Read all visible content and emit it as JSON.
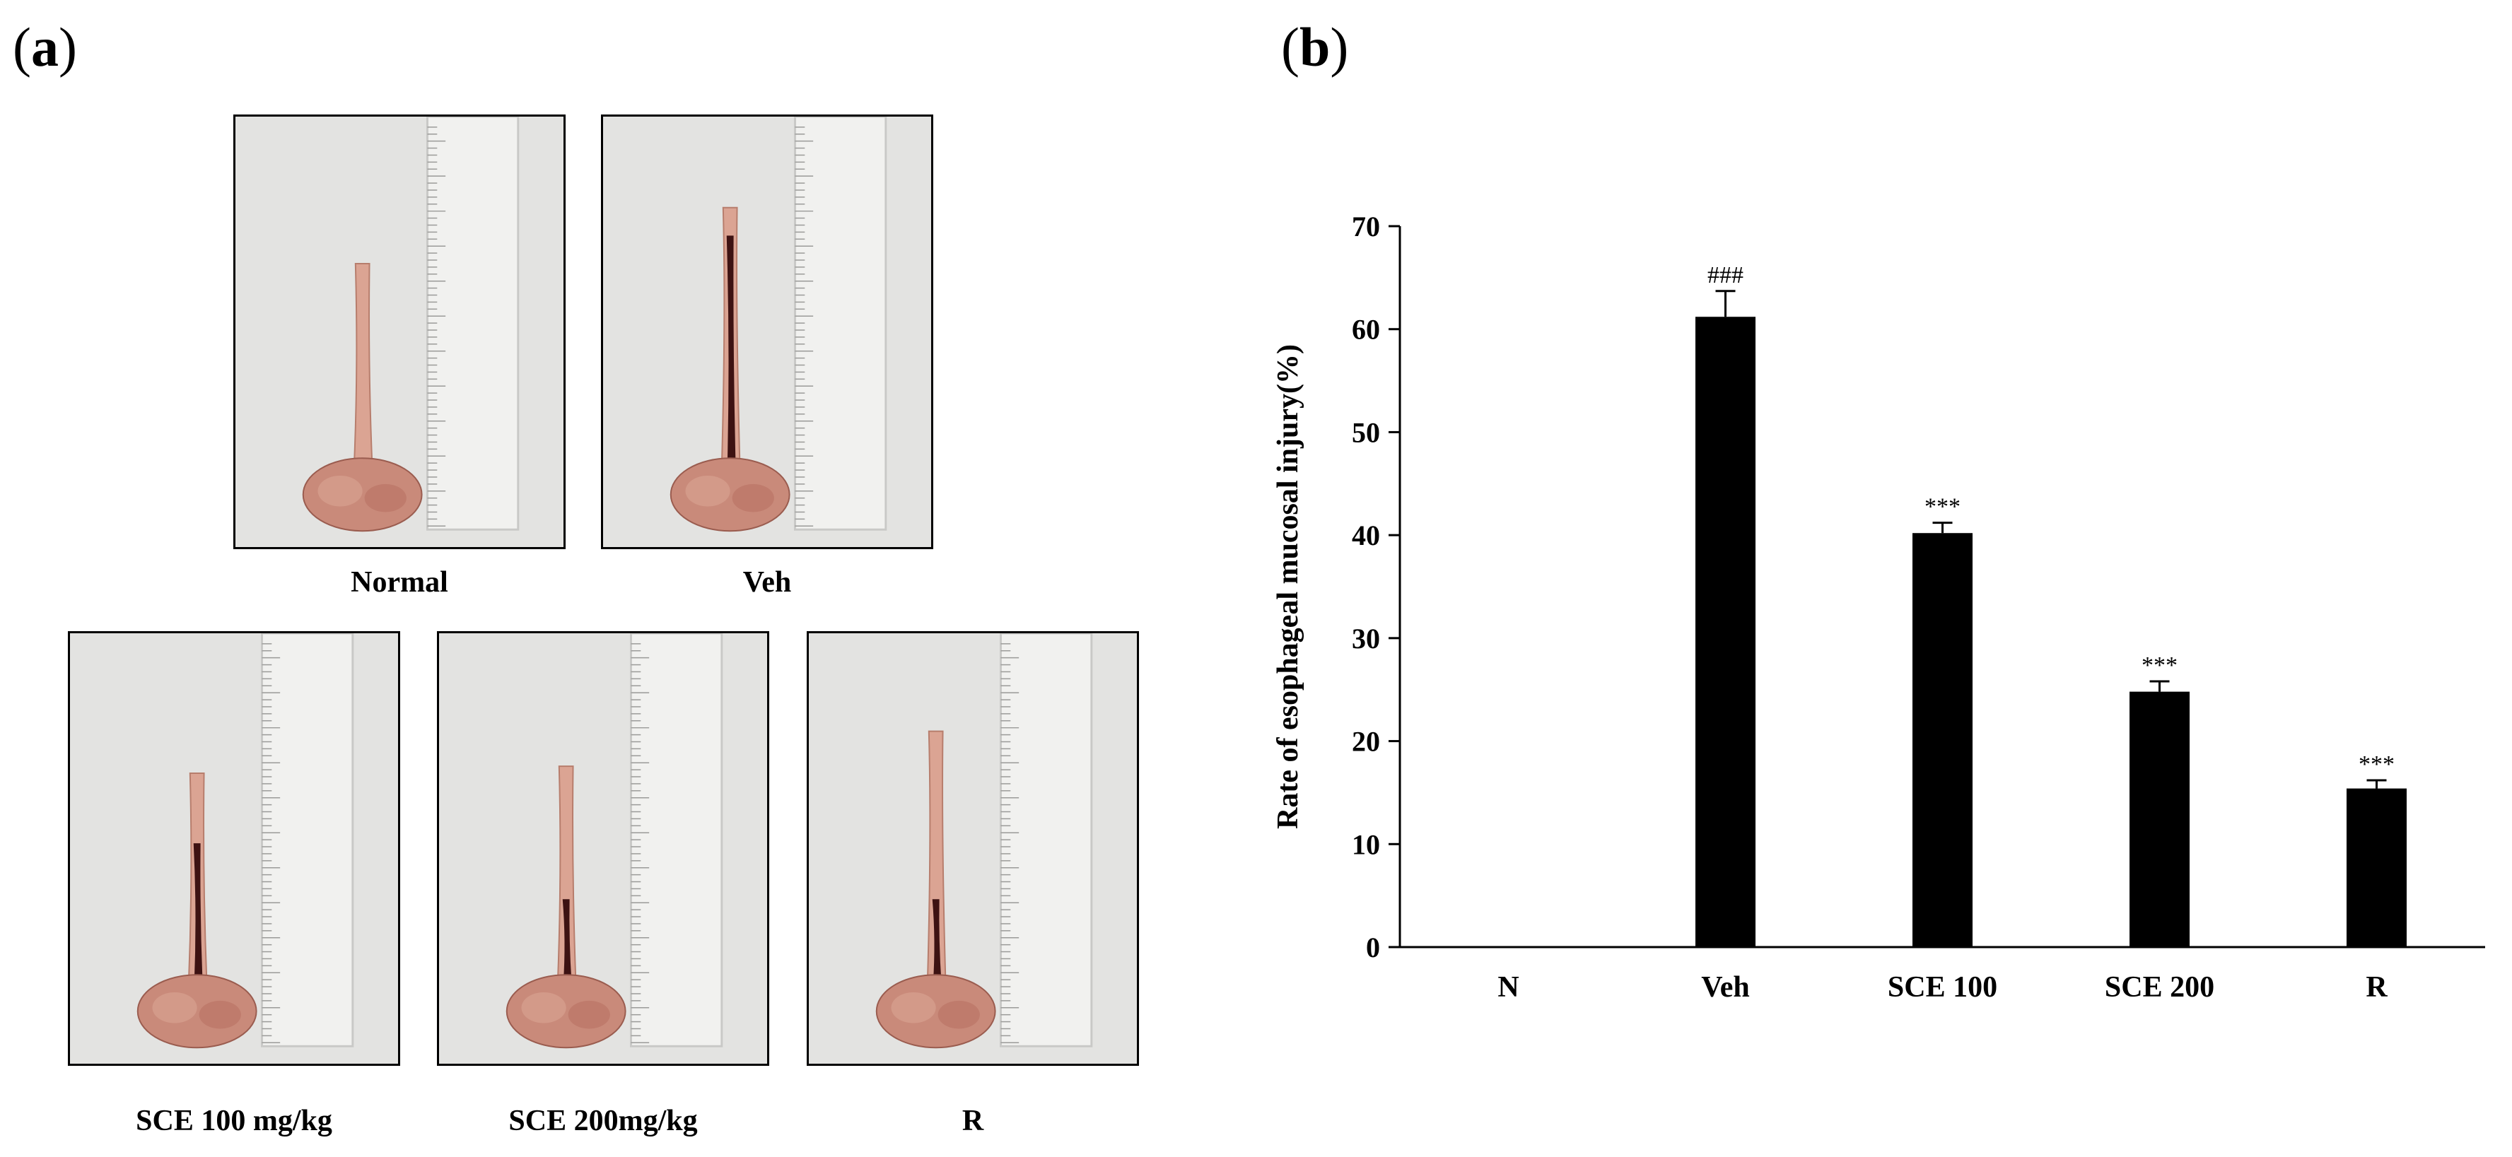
{
  "panels": {
    "a": {
      "open": "(",
      "letter": "a",
      "close": ")"
    },
    "b": {
      "open": "(",
      "letter": "b",
      "close": ")"
    }
  },
  "photos": [
    {
      "caption": "Normal",
      "lesion": "none"
    },
    {
      "caption": "Veh",
      "lesion": "severe"
    },
    {
      "caption": "SCE 100 mg/kg",
      "lesion": "moderate"
    },
    {
      "caption": "SCE 200mg/kg",
      "lesion": "mild"
    },
    {
      "caption": "R",
      "lesion": "mild"
    }
  ],
  "chart_data": {
    "type": "bar",
    "categories": [
      "N",
      "Veh",
      "SCE 100",
      "SCE 200",
      "R"
    ],
    "values": [
      0,
      61.2,
      40.2,
      24.8,
      15.4
    ],
    "errors": [
      0,
      2.5,
      1.0,
      1.0,
      0.8
    ],
    "annotations": [
      "",
      "###",
      "***",
      "***",
      "***"
    ],
    "ylabel": "Rate of esophageal mucosal injury(%)",
    "xlabel": "",
    "ylim": [
      0,
      70
    ],
    "yticks": [
      0,
      10,
      20,
      30,
      40,
      50,
      60,
      70
    ],
    "bar_color": "#000000",
    "grid": false
  }
}
